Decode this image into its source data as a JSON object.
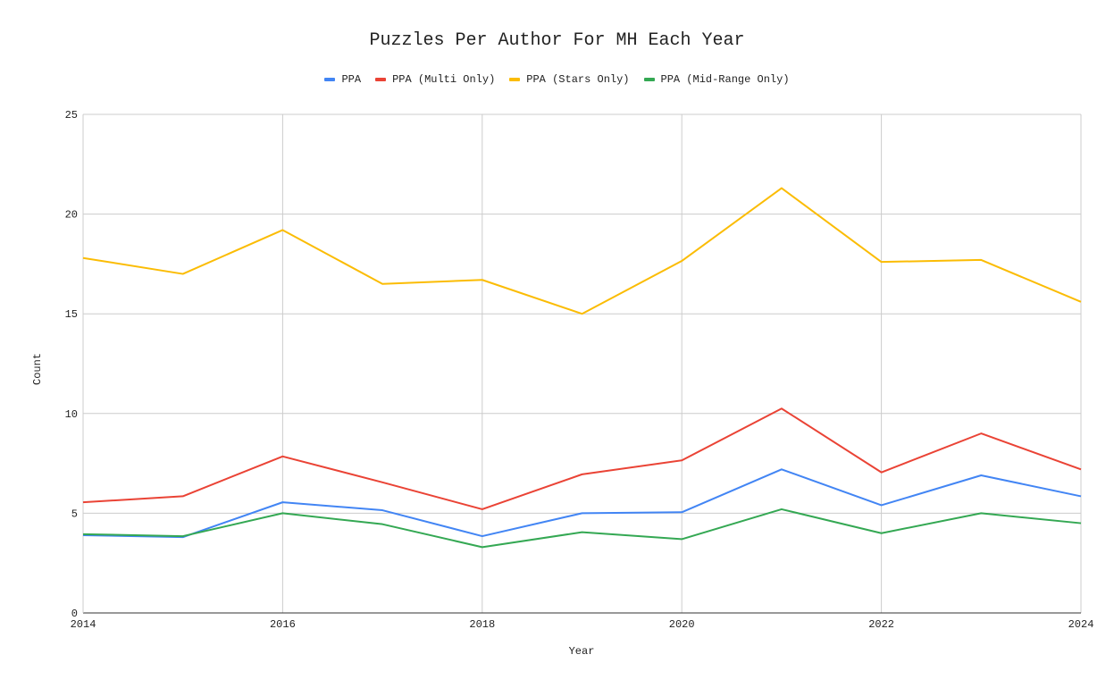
{
  "chart_data": {
    "type": "line",
    "title": "Puzzles Per Author For MH Each Year",
    "xlabel": "Year",
    "ylabel": "Count",
    "x": [
      2014,
      2015,
      2016,
      2017,
      2018,
      2019,
      2020,
      2021,
      2022,
      2023,
      2024
    ],
    "xlim": [
      2014,
      2024
    ],
    "ylim": [
      0,
      25
    ],
    "x_ticks": [
      "2014",
      "2016",
      "2018",
      "2020",
      "2022",
      "2024"
    ],
    "y_ticks": [
      "0",
      "5",
      "10",
      "15",
      "20",
      "25"
    ],
    "grid": true,
    "legend_position": "top",
    "series": [
      {
        "name": "PPA",
        "color": "#4285f4",
        "values": [
          3.9,
          3.8,
          5.55,
          5.15,
          3.85,
          5.0,
          5.05,
          7.2,
          5.4,
          6.9,
          5.85
        ]
      },
      {
        "name": "PPA (Multi Only)",
        "color": "#ea4335",
        "values": [
          5.55,
          5.85,
          7.85,
          6.55,
          5.2,
          6.95,
          7.65,
          10.25,
          7.05,
          9.0,
          7.2
        ]
      },
      {
        "name": "PPA (Stars Only)",
        "color": "#fbbc04",
        "values": [
          17.8,
          17.0,
          19.2,
          16.5,
          16.7,
          15.0,
          17.65,
          21.3,
          17.6,
          17.7,
          15.6
        ]
      },
      {
        "name": "PPA (Mid-Range Only)",
        "color": "#34a853",
        "values": [
          3.95,
          3.85,
          5.0,
          4.45,
          3.3,
          4.05,
          3.7,
          5.2,
          4.0,
          5.0,
          4.5
        ]
      }
    ]
  }
}
